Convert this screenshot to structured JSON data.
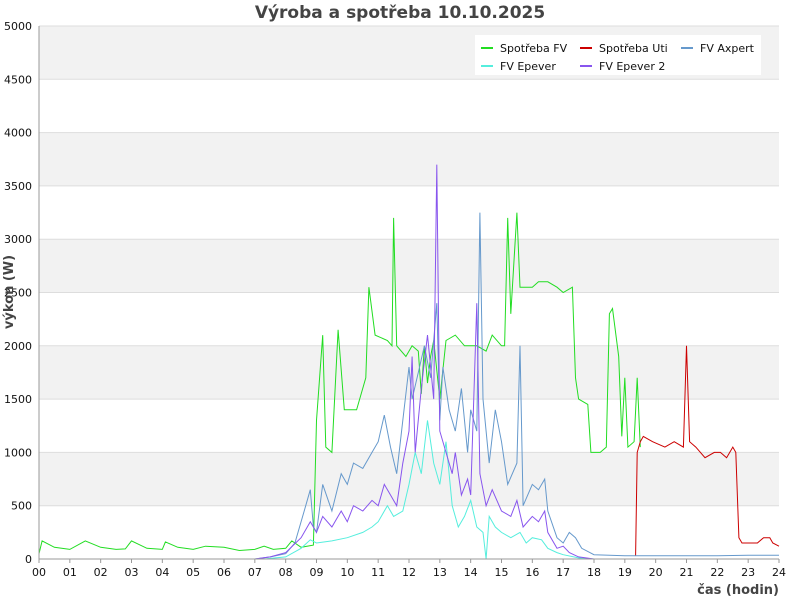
{
  "chart_data": {
    "type": "line",
    "title": "Výroba a spotřeba 10.10.2025",
    "xlabel": "čas (hodin)",
    "ylabel": "výkon (W)",
    "xlim": [
      0,
      24
    ],
    "ylim": [
      0,
      5000
    ],
    "x_ticks": [
      "00",
      "01",
      "02",
      "03",
      "04",
      "05",
      "06",
      "07",
      "08",
      "09",
      "10",
      "11",
      "12",
      "13",
      "14",
      "15",
      "16",
      "17",
      "18",
      "19",
      "20",
      "21",
      "22",
      "23",
      "24"
    ],
    "y_ticks": [
      0,
      500,
      1000,
      1500,
      2000,
      2500,
      3000,
      3500,
      4000,
      4500,
      5000
    ],
    "grid": "horizontal bands",
    "legend_position": "top-right",
    "series": [
      {
        "name": "Spotřeba FV",
        "color": "#22dd22",
        "points": [
          [
            0,
            50
          ],
          [
            0.1,
            170
          ],
          [
            0.5,
            110
          ],
          [
            1,
            90
          ],
          [
            1.5,
            170
          ],
          [
            2,
            110
          ],
          [
            2.5,
            90
          ],
          [
            2.8,
            95
          ],
          [
            3,
            170
          ],
          [
            3.5,
            100
          ],
          [
            4,
            90
          ],
          [
            4.1,
            160
          ],
          [
            4.5,
            110
          ],
          [
            5,
            90
          ],
          [
            5.4,
            120
          ],
          [
            6,
            110
          ],
          [
            6.5,
            80
          ],
          [
            7,
            90
          ],
          [
            7.3,
            120
          ],
          [
            7.6,
            90
          ],
          [
            8,
            100
          ],
          [
            8.2,
            170
          ],
          [
            8.5,
            110
          ],
          [
            8.9,
            130
          ],
          [
            9.0,
            1300
          ],
          [
            9.1,
            1700
          ],
          [
            9.2,
            2100
          ],
          [
            9.3,
            1050
          ],
          [
            9.5,
            1000
          ],
          [
            9.7,
            2150
          ],
          [
            9.9,
            1400
          ],
          [
            10.3,
            1400
          ],
          [
            10.6,
            1700
          ],
          [
            10.7,
            2550
          ],
          [
            10.9,
            2100
          ],
          [
            11.3,
            2050
          ],
          [
            11.45,
            2000
          ],
          [
            11.5,
            3200
          ],
          [
            11.6,
            2000
          ],
          [
            11.9,
            1900
          ],
          [
            12.1,
            2000
          ],
          [
            12.3,
            1950
          ],
          [
            12.4,
            1550
          ],
          [
            12.5,
            2000
          ],
          [
            12.6,
            1650
          ],
          [
            12.7,
            1900
          ],
          [
            12.8,
            2050
          ],
          [
            13.0,
            1500
          ],
          [
            13.2,
            2050
          ],
          [
            13.5,
            2100
          ],
          [
            13.8,
            2000
          ],
          [
            14.2,
            2000
          ],
          [
            14.5,
            1950
          ],
          [
            14.7,
            2100
          ],
          [
            15.0,
            2000
          ],
          [
            15.1,
            2000
          ],
          [
            15.2,
            3200
          ],
          [
            15.3,
            2300
          ],
          [
            15.5,
            3250
          ],
          [
            15.6,
            2550
          ],
          [
            16.0,
            2550
          ],
          [
            16.2,
            2600
          ],
          [
            16.5,
            2600
          ],
          [
            16.8,
            2550
          ],
          [
            17.0,
            2500
          ],
          [
            17.3,
            2550
          ],
          [
            17.4,
            1700
          ],
          [
            17.5,
            1500
          ],
          [
            17.8,
            1450
          ],
          [
            17.9,
            1000
          ],
          [
            18.2,
            1000
          ],
          [
            18.4,
            1050
          ],
          [
            18.5,
            2300
          ],
          [
            18.6,
            2350
          ],
          [
            18.8,
            1900
          ],
          [
            18.9,
            1150
          ],
          [
            19.0,
            1700
          ],
          [
            19.1,
            1050
          ],
          [
            19.3,
            1100
          ],
          [
            19.4,
            1700
          ],
          [
            19.5,
            1050
          ]
        ]
      },
      {
        "name": "Spotřeba Uti",
        "color": "#cc0000",
        "points": [
          [
            19.35,
            30
          ],
          [
            19.4,
            1000
          ],
          [
            19.5,
            1100
          ],
          [
            19.6,
            1150
          ],
          [
            19.9,
            1100
          ],
          [
            20.3,
            1050
          ],
          [
            20.6,
            1100
          ],
          [
            20.9,
            1050
          ],
          [
            21.0,
            2000
          ],
          [
            21.1,
            1100
          ],
          [
            21.3,
            1050
          ],
          [
            21.6,
            950
          ],
          [
            21.9,
            1000
          ],
          [
            22.1,
            1000
          ],
          [
            22.3,
            950
          ],
          [
            22.5,
            1050
          ],
          [
            22.6,
            1000
          ],
          [
            22.7,
            200
          ],
          [
            22.8,
            150
          ],
          [
            23.3,
            150
          ],
          [
            23.5,
            200
          ],
          [
            23.7,
            200
          ],
          [
            23.8,
            150
          ],
          [
            24.0,
            120
          ]
        ]
      },
      {
        "name": "FV Axpert",
        "color": "#6699cc",
        "points": [
          [
            7.0,
            0
          ],
          [
            7.5,
            20
          ],
          [
            8.0,
            50
          ],
          [
            8.3,
            150
          ],
          [
            8.6,
            450
          ],
          [
            8.8,
            650
          ],
          [
            8.9,
            300
          ],
          [
            9.0,
            250
          ],
          [
            9.2,
            700
          ],
          [
            9.5,
            450
          ],
          [
            9.8,
            800
          ],
          [
            10.0,
            700
          ],
          [
            10.2,
            900
          ],
          [
            10.5,
            850
          ],
          [
            10.8,
            1000
          ],
          [
            11.0,
            1100
          ],
          [
            11.2,
            1350
          ],
          [
            11.4,
            1050
          ],
          [
            11.6,
            800
          ],
          [
            11.8,
            1300
          ],
          [
            12.0,
            1800
          ],
          [
            12.1,
            1500
          ],
          [
            12.3,
            1750
          ],
          [
            12.5,
            2000
          ],
          [
            12.7,
            1700
          ],
          [
            12.9,
            2400
          ],
          [
            13.0,
            1300
          ],
          [
            13.1,
            1800
          ],
          [
            13.3,
            1400
          ],
          [
            13.5,
            1200
          ],
          [
            13.7,
            1600
          ],
          [
            13.9,
            1000
          ],
          [
            14.0,
            1400
          ],
          [
            14.2,
            1200
          ],
          [
            14.3,
            3250
          ],
          [
            14.4,
            1500
          ],
          [
            14.6,
            900
          ],
          [
            14.8,
            1400
          ],
          [
            15.0,
            1100
          ],
          [
            15.2,
            700
          ],
          [
            15.5,
            900
          ],
          [
            15.6,
            2000
          ],
          [
            15.7,
            500
          ],
          [
            16.0,
            700
          ],
          [
            16.2,
            650
          ],
          [
            16.4,
            750
          ],
          [
            16.5,
            450
          ],
          [
            16.8,
            200
          ],
          [
            17.0,
            150
          ],
          [
            17.2,
            250
          ],
          [
            17.4,
            200
          ],
          [
            17.6,
            100
          ],
          [
            18.0,
            40
          ],
          [
            19.0,
            30
          ],
          [
            20.0,
            30
          ],
          [
            21.0,
            30
          ],
          [
            22.0,
            30
          ],
          [
            23.0,
            35
          ],
          [
            24.0,
            35
          ]
        ]
      },
      {
        "name": "FV Epever",
        "color": "#55eedd",
        "points": [
          [
            7.3,
            0
          ],
          [
            8.0,
            20
          ],
          [
            8.5,
            100
          ],
          [
            8.8,
            180
          ],
          [
            9.0,
            150
          ],
          [
            9.5,
            170
          ],
          [
            10.0,
            200
          ],
          [
            10.5,
            250
          ],
          [
            10.8,
            300
          ],
          [
            11.0,
            350
          ],
          [
            11.3,
            500
          ],
          [
            11.5,
            400
          ],
          [
            11.8,
            450
          ],
          [
            12.0,
            700
          ],
          [
            12.2,
            1000
          ],
          [
            12.4,
            800
          ],
          [
            12.6,
            1300
          ],
          [
            12.8,
            900
          ],
          [
            13.0,
            700
          ],
          [
            13.2,
            1100
          ],
          [
            13.4,
            500
          ],
          [
            13.6,
            300
          ],
          [
            13.8,
            400
          ],
          [
            14.0,
            550
          ],
          [
            14.2,
            300
          ],
          [
            14.4,
            250
          ],
          [
            14.5,
            0
          ],
          [
            14.6,
            400
          ],
          [
            14.8,
            300
          ],
          [
            15.0,
            250
          ],
          [
            15.3,
            200
          ],
          [
            15.6,
            250
          ],
          [
            15.8,
            150
          ],
          [
            16.0,
            200
          ],
          [
            16.3,
            180
          ],
          [
            16.5,
            100
          ],
          [
            16.8,
            60
          ],
          [
            17.0,
            40
          ],
          [
            17.5,
            10
          ],
          [
            18.0,
            0
          ]
        ]
      },
      {
        "name": "FV Epever 2",
        "color": "#8855ee",
        "points": [
          [
            7.0,
            0
          ],
          [
            7.5,
            20
          ],
          [
            8.0,
            60
          ],
          [
            8.5,
            200
          ],
          [
            8.8,
            350
          ],
          [
            9.0,
            250
          ],
          [
            9.2,
            400
          ],
          [
            9.5,
            300
          ],
          [
            9.8,
            450
          ],
          [
            10.0,
            350
          ],
          [
            10.2,
            500
          ],
          [
            10.5,
            450
          ],
          [
            10.8,
            550
          ],
          [
            11.0,
            500
          ],
          [
            11.2,
            700
          ],
          [
            11.4,
            600
          ],
          [
            11.6,
            500
          ],
          [
            11.8,
            900
          ],
          [
            12.0,
            1200
          ],
          [
            12.1,
            1900
          ],
          [
            12.2,
            1000
          ],
          [
            12.4,
            1600
          ],
          [
            12.6,
            2100
          ],
          [
            12.8,
            1500
          ],
          [
            12.9,
            3700
          ],
          [
            13.0,
            1200
          ],
          [
            13.2,
            1000
          ],
          [
            13.4,
            800
          ],
          [
            13.5,
            1000
          ],
          [
            13.7,
            600
          ],
          [
            13.9,
            750
          ],
          [
            14.0,
            600
          ],
          [
            14.2,
            2400
          ],
          [
            14.3,
            800
          ],
          [
            14.5,
            500
          ],
          [
            14.7,
            650
          ],
          [
            15.0,
            450
          ],
          [
            15.3,
            400
          ],
          [
            15.5,
            550
          ],
          [
            15.7,
            300
          ],
          [
            16.0,
            400
          ],
          [
            16.2,
            350
          ],
          [
            16.4,
            450
          ],
          [
            16.5,
            250
          ],
          [
            16.8,
            100
          ],
          [
            17.0,
            120
          ],
          [
            17.2,
            60
          ],
          [
            17.5,
            20
          ],
          [
            18.0,
            0
          ]
        ]
      }
    ]
  }
}
